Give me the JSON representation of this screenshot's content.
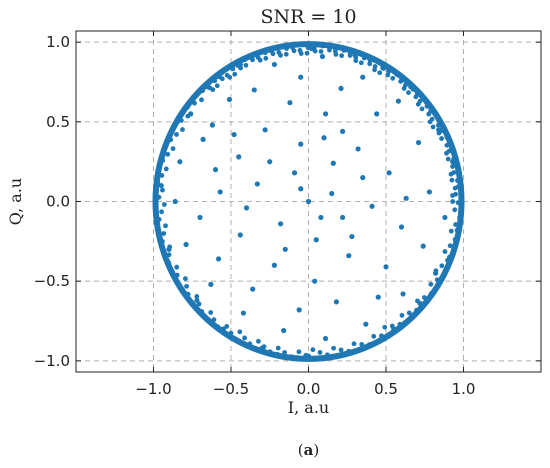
{
  "chart_data": {
    "type": "scatter",
    "title": "SNR = 10",
    "xlabel": "I, a.u",
    "ylabel": "Q, a.u",
    "xlim": [
      -1.5,
      1.5
    ],
    "ylim": [
      -1.07,
      1.07
    ],
    "x_ticks": [
      -1.0,
      -0.5,
      0.0,
      0.5,
      1.0
    ],
    "x_tick_labels": [
      "−1.0",
      "−0.5",
      "0.0",
      "0.5",
      "1.0"
    ],
    "y_ticks": [
      -1.0,
      -0.5,
      0.0,
      0.5,
      1.0
    ],
    "y_tick_labels": [
      "−1.0",
      "−0.5",
      "0.0",
      "0.5",
      "1.0"
    ],
    "grid": true,
    "point_color": "#1f77b4",
    "series": [
      {
        "values": [
          [
            0.0,
            0.0
          ],
          [
            -0.45,
            0.28
          ],
          [
            -0.12,
            0.62
          ],
          [
            0.11,
            0.55
          ],
          [
            0.32,
            0.33
          ],
          [
            0.41,
            -0.03
          ],
          [
            0.26,
            -0.34
          ],
          [
            0.04,
            -0.5
          ],
          [
            -0.22,
            -0.4
          ],
          [
            -0.44,
            -0.21
          ],
          [
            -0.57,
            0.06
          ],
          [
            -0.68,
            0.39
          ],
          [
            -0.51,
            0.64
          ],
          [
            -0.22,
            0.86
          ],
          [
            0.09,
            0.91
          ],
          [
            0.35,
            0.78
          ],
          [
            0.58,
            0.63
          ],
          [
            0.71,
            0.37
          ],
          [
            0.78,
            0.06
          ],
          [
            0.74,
            -0.28
          ],
          [
            0.61,
            -0.58
          ],
          [
            0.37,
            -0.77
          ],
          [
            0.11,
            -0.86
          ],
          [
            -0.16,
            -0.81
          ],
          [
            -0.42,
            -0.7
          ],
          [
            -0.63,
            -0.52
          ],
          [
            -0.79,
            -0.27
          ],
          [
            -0.86,
            0.0
          ],
          [
            -0.83,
            0.25
          ],
          [
            -0.76,
            0.55
          ],
          [
            -0.6,
            0.2
          ],
          [
            -0.33,
            0.11
          ],
          [
            -0.09,
            0.18
          ],
          [
            0.16,
            0.24
          ],
          [
            0.52,
            0.18
          ],
          [
            0.6,
            -0.16
          ],
          [
            0.5,
            -0.41
          ],
          [
            0.18,
            -0.63
          ],
          [
            -0.06,
            -0.68
          ],
          [
            -0.36,
            -0.55
          ],
          [
            -0.58,
            -0.36
          ],
          [
            -0.7,
            -0.1
          ],
          [
            -0.4,
            -0.04
          ],
          [
            -0.18,
            -0.14
          ],
          [
            0.05,
            -0.24
          ],
          [
            0.22,
            -0.1
          ],
          [
            0.15,
            0.05
          ],
          [
            -0.05,
            0.36
          ],
          [
            -0.28,
            0.45
          ],
          [
            0.22,
            0.44
          ],
          [
            0.44,
            0.55
          ],
          [
            0.48,
            0.84
          ],
          [
            0.21,
            0.71
          ],
          [
            -0.05,
            0.78
          ],
          [
            -0.35,
            0.7
          ],
          [
            -0.62,
            0.48
          ],
          [
            0.84,
            0.45
          ],
          [
            0.88,
            -0.1
          ],
          [
            0.82,
            -0.45
          ],
          [
            -0.9,
            -0.3
          ],
          [
            -0.92,
            0.35
          ],
          [
            0.3,
            0.92
          ],
          [
            -0.3,
            -0.92
          ],
          [
            0.55,
            -0.8
          ],
          [
            -0.55,
            -0.8
          ],
          [
            0.02,
            0.96
          ],
          [
            -0.65,
            0.72
          ],
          [
            0.66,
            0.72
          ],
          [
            0.93,
            0.25
          ],
          [
            -0.95,
            0.1
          ],
          [
            0.0,
            -0.97
          ],
          [
            0.96,
            -0.18
          ],
          [
            -0.72,
            -0.62
          ],
          [
            0.72,
            -0.64
          ],
          [
            0.25,
            -0.95
          ],
          [
            -0.2,
            -0.96
          ],
          [
            0.42,
            0.89
          ],
          [
            -0.44,
            0.86
          ],
          [
            0.91,
            -0.35
          ],
          [
            -0.88,
            -0.44
          ],
          [
            0.35,
            0.15
          ],
          [
            -0.15,
            -0.3
          ],
          [
            0.1,
            0.4
          ],
          [
            -0.25,
            0.25
          ],
          [
            0.08,
            -0.1
          ],
          [
            0.28,
            -0.22
          ],
          [
            -0.05,
            0.08
          ],
          [
            0.63,
            0.02
          ],
          [
            -0.48,
            0.42
          ],
          [
            0.45,
            -0.6
          ]
        ]
      }
    ],
    "circle": {
      "cx": 0.0,
      "cy": 0.0,
      "r": 1.0
    },
    "panel_label": "(a)"
  }
}
